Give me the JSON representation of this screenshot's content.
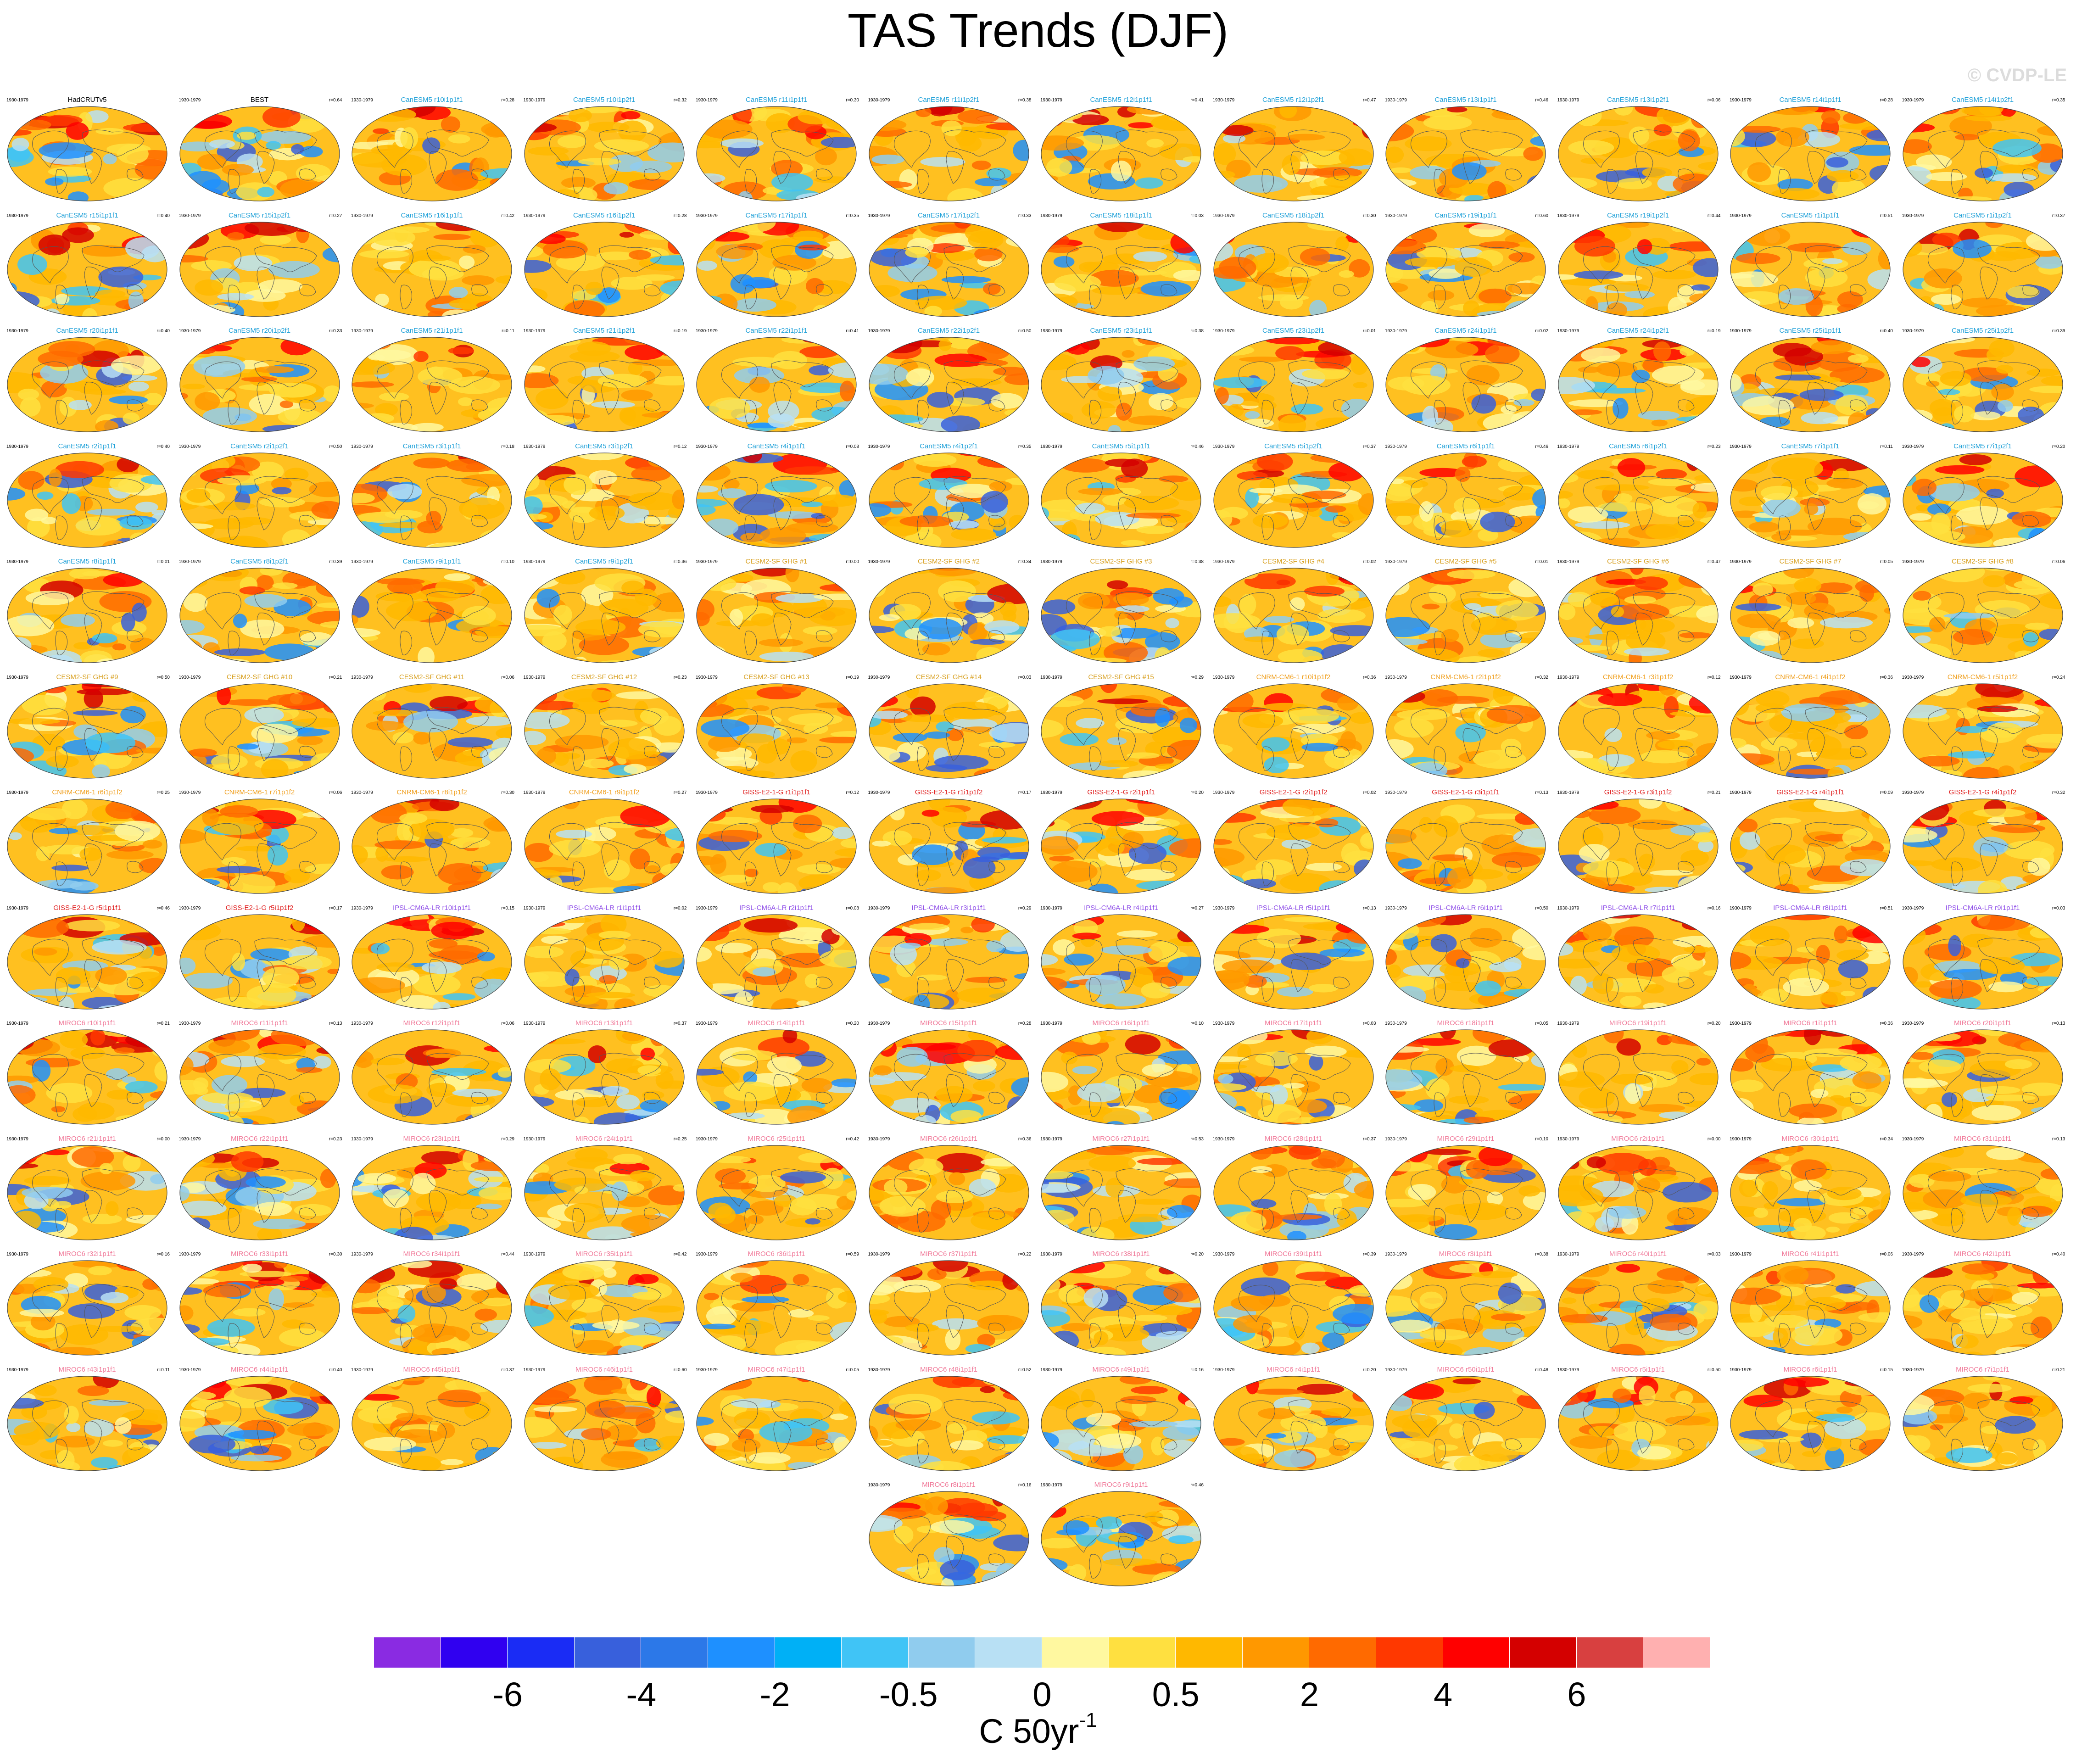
{
  "title": "TAS Trends (DJF)",
  "copyright": "© CVDP-LE",
  "colorbar": {
    "colors": [
      "#8a2be2",
      "#3000f0",
      "#1a2cf5",
      "#3860dc",
      "#2c78e8",
      "#1e90ff",
      "#00b0f6",
      "#40c4f6",
      "#90ccee",
      "#b8e0f4",
      "#fff8a0",
      "#ffe040",
      "#ffb800",
      "#ff9800",
      "#ff6a00",
      "#ff3800",
      "#ff0000",
      "#d40000",
      "#d84040",
      "#ffb0b0"
    ],
    "labels": [
      "-6",
      "-4",
      "-2",
      "-0.5",
      "0",
      "0.5",
      "2",
      "4",
      "6"
    ],
    "unit": "C 50yr",
    "unit_exp": "-1"
  },
  "chart_data": {
    "type": "heatmap",
    "title": "TAS Trends (DJF)",
    "period": "1930-1979",
    "variable": "surface air temperature trend, DJF",
    "units": "C 50yr-1",
    "projection": "global map panels",
    "color_levels": [
      "-6",
      "-4",
      "-2",
      "-0.5",
      "0",
      "0.5",
      "2",
      "4",
      "6"
    ],
    "panels": [
      {
        "name": "HadCRUTv5",
        "r": null
      },
      {
        "name": "BEST",
        "r": "r=0.64"
      },
      {
        "name": "CanESM5 r10i1p1f1",
        "r": "r=0.28"
      },
      {
        "name": "CanESM5 r10i1p2f1",
        "r": "r=0.32"
      },
      {
        "name": "CanESM5 r11i1p1f1",
        "r": "r=0.30"
      },
      {
        "name": "CanESM5 r11i1p2f1",
        "r": "r=0.38"
      },
      {
        "name": "CanESM5 r12i1p1f1",
        "r": "r=0.41"
      },
      {
        "name": "CanESM5 r12i1p2f1",
        "r": "r=0.47"
      },
      {
        "name": "CanESM5 r13i1p1f1",
        "r": "r=0.46"
      },
      {
        "name": "CanESM5 r13i1p2f1",
        "r": "r=0.06"
      },
      {
        "name": "CanESM5 r14i1p1f1",
        "r": "r=0.28"
      },
      {
        "name": "CanESM5 r14i1p2f1",
        "r": "r=0.35"
      },
      {
        "name": "CanESM5 r15i1p1f1",
        "r": "r=0.40"
      },
      {
        "name": "CanESM5 r15i1p2f1",
        "r": "r=0.27"
      },
      {
        "name": "CanESM5 r16i1p1f1",
        "r": "r=0.42"
      },
      {
        "name": "CanESM5 r16i1p2f1",
        "r": "r=0.28"
      },
      {
        "name": "CanESM5 r17i1p1f1",
        "r": "r=0.35"
      },
      {
        "name": "CanESM5 r17i1p2f1",
        "r": "r=0.33"
      },
      {
        "name": "CanESM5 r18i1p1f1",
        "r": "r=0.03"
      },
      {
        "name": "CanESM5 r18i1p2f1",
        "r": "r=0.30"
      },
      {
        "name": "CanESM5 r19i1p1f1",
        "r": "r=0.60"
      },
      {
        "name": "CanESM5 r19i1p2f1",
        "r": "r=0.44"
      },
      {
        "name": "CanESM5 r1i1p1f1",
        "r": "r=0.51"
      },
      {
        "name": "CanESM5 r1i1p2f1",
        "r": "r=0.37"
      },
      {
        "name": "CanESM5 r20i1p1f1",
        "r": "r=0.40"
      },
      {
        "name": "CanESM5 r20i1p2f1",
        "r": "r=0.33"
      },
      {
        "name": "CanESM5 r21i1p1f1",
        "r": "r=0.11"
      },
      {
        "name": "CanESM5 r21i1p2f1",
        "r": "r=0.19"
      },
      {
        "name": "CanESM5 r22i1p1f1",
        "r": "r=0.41"
      },
      {
        "name": "CanESM5 r22i1p2f1",
        "r": "r=0.50"
      },
      {
        "name": "CanESM5 r23i1p1f1",
        "r": "r=0.38"
      },
      {
        "name": "CanESM5 r23i1p2f1",
        "r": "r=0.01"
      },
      {
        "name": "CanESM5 r24i1p1f1",
        "r": "r=0.02"
      },
      {
        "name": "CanESM5 r24i1p2f1",
        "r": "r=0.19"
      },
      {
        "name": "CanESM5 r25i1p1f1",
        "r": "r=0.40"
      },
      {
        "name": "CanESM5 r25i1p2f1",
        "r": "r=0.39"
      },
      {
        "name": "CanESM5 r2i1p1f1",
        "r": "r=0.40"
      },
      {
        "name": "CanESM5 r2i1p2f1",
        "r": "r=0.50"
      },
      {
        "name": "CanESM5 r3i1p1f1",
        "r": "r=0.18"
      },
      {
        "name": "CanESM5 r3i1p2f1",
        "r": "r=0.12"
      },
      {
        "name": "CanESM5 r4i1p1f1",
        "r": "r=0.08"
      },
      {
        "name": "CanESM5 r4i1p2f1",
        "r": "r=0.35"
      },
      {
        "name": "CanESM5 r5i1p1f1",
        "r": "r=0.46"
      },
      {
        "name": "CanESM5 r5i1p2f1",
        "r": "r=0.37"
      },
      {
        "name": "CanESM5 r6i1p1f1",
        "r": "r=0.46"
      },
      {
        "name": "CanESM5 r6i1p2f1",
        "r": "r=0.23"
      },
      {
        "name": "CanESM5 r7i1p1f1",
        "r": "r=0.11"
      },
      {
        "name": "CanESM5 r7i1p2f1",
        "r": "r=0.20"
      },
      {
        "name": "CanESM5 r8i1p1f1",
        "r": "r=0.01"
      },
      {
        "name": "CanESM5 r8i1p2f1",
        "r": "r=0.39"
      },
      {
        "name": "CanESM5 r9i1p1f1",
        "r": "r=0.10"
      },
      {
        "name": "CanESM5 r9i1p2f1",
        "r": "r=0.36"
      },
      {
        "name": "CESM2-SF GHG #1",
        "r": "r=0.00"
      },
      {
        "name": "CESM2-SF GHG #2",
        "r": "r=0.34"
      },
      {
        "name": "CESM2-SF GHG #3",
        "r": "r=0.38"
      },
      {
        "name": "CESM2-SF GHG #4",
        "r": "r=0.02"
      },
      {
        "name": "CESM2-SF GHG #5",
        "r": "r=0.01"
      },
      {
        "name": "CESM2-SF GHG #6",
        "r": "r=0.47"
      },
      {
        "name": "CESM2-SF GHG #7",
        "r": "r=0.05"
      },
      {
        "name": "CESM2-SF GHG #8",
        "r": "r=0.06"
      },
      {
        "name": "CESM2-SF GHG #9",
        "r": "r=0.50"
      },
      {
        "name": "CESM2-SF GHG #10",
        "r": "r=0.21"
      },
      {
        "name": "CESM2-SF GHG #11",
        "r": "r=0.06"
      },
      {
        "name": "CESM2-SF GHG #12",
        "r": "r=0.23"
      },
      {
        "name": "CESM2-SF GHG #13",
        "r": "r=0.19"
      },
      {
        "name": "CESM2-SF GHG #14",
        "r": "r=0.03"
      },
      {
        "name": "CESM2-SF GHG #15",
        "r": "r=0.29"
      },
      {
        "name": "CNRM-CM6-1 r10i1p1f2",
        "r": "r=0.36"
      },
      {
        "name": "CNRM-CM6-1 r2i1p1f2",
        "r": "r=0.32"
      },
      {
        "name": "CNRM-CM6-1 r3i1p1f2",
        "r": "r=0.12"
      },
      {
        "name": "CNRM-CM6-1 r4i1p1f2",
        "r": "r=0.36"
      },
      {
        "name": "CNRM-CM6-1 r5i1p1f2",
        "r": "r=0.24"
      },
      {
        "name": "CNRM-CM6-1 r6i1p1f2",
        "r": "r=0.25"
      },
      {
        "name": "CNRM-CM6-1 r7i1p1f2",
        "r": "r=0.06"
      },
      {
        "name": "CNRM-CM6-1 r8i1p1f2",
        "r": "r=0.30"
      },
      {
        "name": "CNRM-CM6-1 r9i1p1f2",
        "r": "r=0.27"
      },
      {
        "name": "GISS-E2-1-G r1i1p1f1",
        "r": "r=0.12"
      },
      {
        "name": "GISS-E2-1-G r1i1p1f2",
        "r": "r=0.17"
      },
      {
        "name": "GISS-E2-1-G r2i1p1f1",
        "r": "r=0.20"
      },
      {
        "name": "GISS-E2-1-G r2i1p1f2",
        "r": "r=0.02"
      },
      {
        "name": "GISS-E2-1-G r3i1p1f1",
        "r": "r=0.13"
      },
      {
        "name": "GISS-E2-1-G r3i1p1f2",
        "r": "r=0.21"
      },
      {
        "name": "GISS-E2-1-G r4i1p1f1",
        "r": "r=0.09"
      },
      {
        "name": "GISS-E2-1-G r4i1p1f2",
        "r": "r=0.32"
      },
      {
        "name": "GISS-E2-1-G r5i1p1f1",
        "r": "r=0.46"
      },
      {
        "name": "GISS-E2-1-G r5i1p1f2",
        "r": "r=0.17"
      },
      {
        "name": "IPSL-CM6A-LR r10i1p1f1",
        "r": "r=0.15"
      },
      {
        "name": "IPSL-CM6A-LR r1i1p1f1",
        "r": "r=0.02"
      },
      {
        "name": "IPSL-CM6A-LR r2i1p1f1",
        "r": "r=0.08"
      },
      {
        "name": "IPSL-CM6A-LR r3i1p1f1",
        "r": "r=0.29"
      },
      {
        "name": "IPSL-CM6A-LR r4i1p1f1",
        "r": "r=0.27"
      },
      {
        "name": "IPSL-CM6A-LR r5i1p1f1",
        "r": "r=0.13"
      },
      {
        "name": "IPSL-CM6A-LR r6i1p1f1",
        "r": "r=0.50"
      },
      {
        "name": "IPSL-CM6A-LR r7i1p1f1",
        "r": "r=0.16"
      },
      {
        "name": "IPSL-CM6A-LR r8i1p1f1",
        "r": "r=0.51"
      },
      {
        "name": "IPSL-CM6A-LR r9i1p1f1",
        "r": "r=0.03"
      },
      {
        "name": "MIROC6 r10i1p1f1",
        "r": "r=0.21"
      },
      {
        "name": "MIROC6 r11i1p1f1",
        "r": "r=0.13"
      },
      {
        "name": "MIROC6 r12i1p1f1",
        "r": "r=0.06"
      },
      {
        "name": "MIROC6 r13i1p1f1",
        "r": "r=0.37"
      },
      {
        "name": "MIROC6 r14i1p1f1",
        "r": "r=0.20"
      },
      {
        "name": "MIROC6 r15i1p1f1",
        "r": "r=0.28"
      },
      {
        "name": "MIROC6 r16i1p1f1",
        "r": "r=0.10"
      },
      {
        "name": "MIROC6 r17i1p1f1",
        "r": "r=0.03"
      },
      {
        "name": "MIROC6 r18i1p1f1",
        "r": "r=0.05"
      },
      {
        "name": "MIROC6 r19i1p1f1",
        "r": "r=0.20"
      },
      {
        "name": "MIROC6 r1i1p1f1",
        "r": "r=0.36"
      },
      {
        "name": "MIROC6 r20i1p1f1",
        "r": "r=0.13"
      },
      {
        "name": "MIROC6 r21i1p1f1",
        "r": "r=0.00"
      },
      {
        "name": "MIROC6 r22i1p1f1",
        "r": "r=0.23"
      },
      {
        "name": "MIROC6 r23i1p1f1",
        "r": "r=0.29"
      },
      {
        "name": "MIROC6 r24i1p1f1",
        "r": "r=0.25"
      },
      {
        "name": "MIROC6 r25i1p1f1",
        "r": "r=0.42"
      },
      {
        "name": "MIROC6 r26i1p1f1",
        "r": "r=0.36"
      },
      {
        "name": "MIROC6 r27i1p1f1",
        "r": "r=0.53"
      },
      {
        "name": "MIROC6 r28i1p1f1",
        "r": "r=0.37"
      },
      {
        "name": "MIROC6 r29i1p1f1",
        "r": "r=0.10"
      },
      {
        "name": "MIROC6 r2i1p1f1",
        "r": "r=0.00"
      },
      {
        "name": "MIROC6 r30i1p1f1",
        "r": "r=0.34"
      },
      {
        "name": "MIROC6 r31i1p1f1",
        "r": "r=0.13"
      },
      {
        "name": "MIROC6 r32i1p1f1",
        "r": "r=0.16"
      },
      {
        "name": "MIROC6 r33i1p1f1",
        "r": "r=0.30"
      },
      {
        "name": "MIROC6 r34i1p1f1",
        "r": "r=0.44"
      },
      {
        "name": "MIROC6 r35i1p1f1",
        "r": "r=0.42"
      },
      {
        "name": "MIROC6 r36i1p1f1",
        "r": "r=0.59"
      },
      {
        "name": "MIROC6 r37i1p1f1",
        "r": "r=0.22"
      },
      {
        "name": "MIROC6 r38i1p1f1",
        "r": "r=0.20"
      },
      {
        "name": "MIROC6 r39i1p1f1",
        "r": "r=0.39"
      },
      {
        "name": "MIROC6 r3i1p1f1",
        "r": "r=0.38"
      },
      {
        "name": "MIROC6 r40i1p1f1",
        "r": "r=0.03"
      },
      {
        "name": "MIROC6 r41i1p1f1",
        "r": "r=0.06"
      },
      {
        "name": "MIROC6 r42i1p1f1",
        "r": "r=0.40"
      },
      {
        "name": "MIROC6 r43i1p1f1",
        "r": "r=0.11"
      },
      {
        "name": "MIROC6 r44i1p1f1",
        "r": "r=0.40"
      },
      {
        "name": "MIROC6 r45i1p1f1",
        "r": "r=0.37"
      },
      {
        "name": "MIROC6 r46i1p1f1",
        "r": "r=0.60"
      },
      {
        "name": "MIROC6 r47i1p1f1",
        "r": "r=0.05"
      },
      {
        "name": "MIROC6 r48i1p1f1",
        "r": "r=0.52"
      },
      {
        "name": "MIROC6 r49i1p1f1",
        "r": "r=0.16"
      },
      {
        "name": "MIROC6 r4i1p1f1",
        "r": "r=0.20"
      },
      {
        "name": "MIROC6 r50i1p1f1",
        "r": "r=0.48"
      },
      {
        "name": "MIROC6 r5i1p1f1",
        "r": "r=0.50"
      },
      {
        "name": "MIROC6 r6i1p1f1",
        "r": "r=0.15"
      },
      {
        "name": "MIROC6 r7i1p1f1",
        "r": "r=0.21"
      },
      {
        "name": "MIROC6 r8i1p1f1",
        "r": "r=0.16"
      },
      {
        "name": "MIROC6 r9i1p1f1",
        "r": "r=0.46"
      }
    ]
  }
}
